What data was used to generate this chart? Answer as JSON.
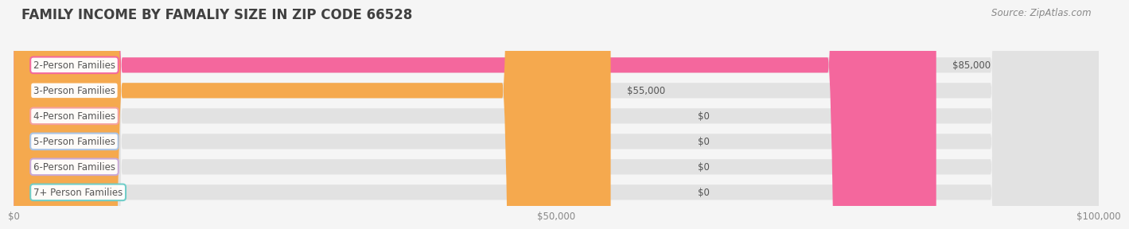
{
  "title": "FAMILY INCOME BY FAMALIY SIZE IN ZIP CODE 66528",
  "source": "Source: ZipAtlas.com",
  "categories": [
    "2-Person Families",
    "3-Person Families",
    "4-Person Families",
    "5-Person Families",
    "6-Person Families",
    "7+ Person Families"
  ],
  "values": [
    85000,
    55000,
    0,
    0,
    0,
    0
  ],
  "bar_colors": [
    "#F4679D",
    "#F5A94E",
    "#F4A0A0",
    "#A8C4E8",
    "#C8A8D8",
    "#6DCDC8"
  ],
  "xlim": [
    0,
    100000
  ],
  "xticks": [
    0,
    50000,
    100000
  ],
  "xtick_labels": [
    "$0",
    "$50,000",
    "$100,000"
  ],
  "background_color": "#f5f5f5",
  "bar_bg_color": "#e2e2e2",
  "title_fontsize": 12,
  "label_fontsize": 8.5,
  "value_fontsize": 8.5,
  "source_fontsize": 8.5
}
